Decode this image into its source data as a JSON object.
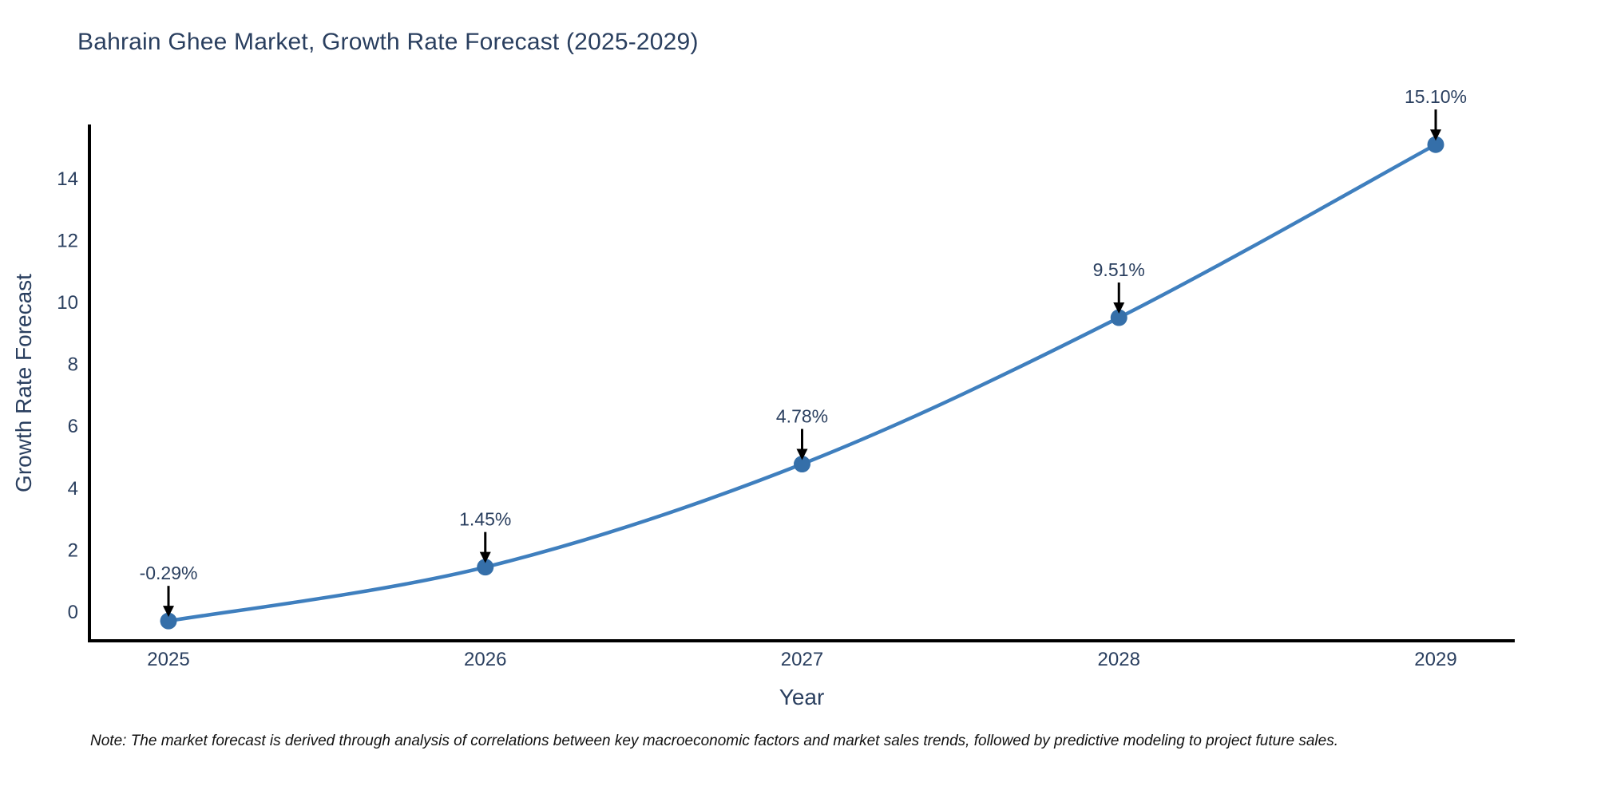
{
  "title": "Bahrain Ghee Market, Growth Rate Forecast (2025-2029)",
  "footnote": "Note: The market forecast is derived through analysis of correlations between key macroeconomic factors and market sales trends, followed by predictive modeling to project future sales.",
  "chart_data": {
    "type": "line",
    "title": "Bahrain Ghee Market, Growth Rate Forecast (2025-2029)",
    "xlabel": "Year",
    "ylabel": "Growth Rate Forecast",
    "categories": [
      "2025",
      "2026",
      "2027",
      "2028",
      "2029"
    ],
    "values": [
      -0.29,
      1.45,
      4.78,
      9.51,
      15.1
    ],
    "point_labels": [
      "-0.29%",
      "1.45%",
      "4.78%",
      "9.51%",
      "15.10%"
    ],
    "yticks": [
      0,
      2,
      4,
      6,
      8,
      10,
      12,
      14
    ],
    "ylim": [
      -0.93,
      15.75
    ],
    "grid": false,
    "legend": "none",
    "line_shape": "spline",
    "colors": {
      "line": "#3f7fbe",
      "marker": "#356fa9",
      "axis": "#000000",
      "text": "#2a3f5f",
      "annotation_arrow": "#000000",
      "background": "#ffffff"
    }
  }
}
